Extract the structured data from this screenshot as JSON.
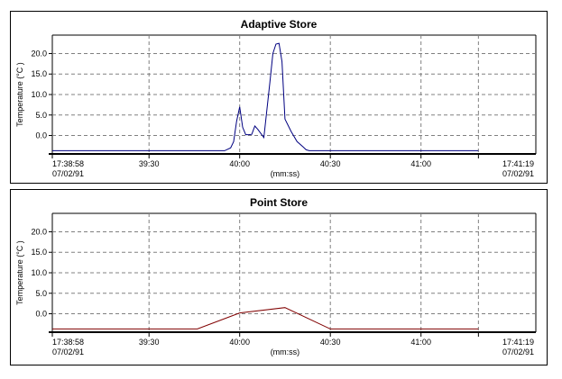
{
  "chart_data": [
    {
      "type": "line",
      "title": "Adaptive Store",
      "ylabel": "Temperature (°C )",
      "xlabel": "(mm:ss)",
      "ylim": [
        -4.5,
        24.5
      ],
      "xlim": [
        0,
        160
      ],
      "grid": true,
      "y_ticks": [
        {
          "value": 20,
          "label": "20.0"
        },
        {
          "value": 15,
          "label": "15.0"
        },
        {
          "value": 10,
          "label": "10.0"
        },
        {
          "value": 5,
          "label": "5.0"
        },
        {
          "value": 0,
          "label": "0.0"
        }
      ],
      "x_ticks": [
        {
          "value": 0,
          "label": "17:38:58",
          "sublabel": "07/02/91",
          "align": "start"
        },
        {
          "value": 32,
          "label": "39:30",
          "sublabel": "",
          "align": "middle"
        },
        {
          "value": 62,
          "label": "40:00",
          "sublabel": "",
          "align": "middle"
        },
        {
          "value": 92,
          "label": "40:30",
          "sublabel": "",
          "align": "middle"
        },
        {
          "value": 122,
          "label": "41:00",
          "sublabel": "",
          "align": "middle"
        },
        {
          "value": 141,
          "label": "17:41:19",
          "sublabel": "07/02/91",
          "align": "end"
        }
      ],
      "series": [
        {
          "color": "#000080",
          "x": [
            0,
            57,
            59,
            60,
            61,
            62,
            63,
            64,
            65,
            66,
            67,
            68,
            69,
            70,
            72,
            73,
            74,
            75,
            76,
            77,
            78,
            79,
            81,
            83,
            84,
            85,
            86,
            87,
            141
          ],
          "y": [
            -3.7,
            -3.7,
            -3,
            -1.5,
            3.5,
            7,
            2,
            0.2,
            0.2,
            0.3,
            2.3,
            1.5,
            0.5,
            -0.5,
            13,
            20,
            22.3,
            22.5,
            18,
            4,
            2.5,
            1,
            -1.5,
            -2.8,
            -3.5,
            -3.7,
            -3.7,
            -3.7,
            -3.7
          ]
        }
      ]
    },
    {
      "type": "line",
      "title": "Point Store",
      "ylabel": "Temperature (°C )",
      "xlabel": "(mm:ss)",
      "ylim": [
        -4.5,
        24.5
      ],
      "xlim": [
        0,
        160
      ],
      "grid": true,
      "y_ticks": [
        {
          "value": 20,
          "label": "20.0"
        },
        {
          "value": 15,
          "label": "15.0"
        },
        {
          "value": 10,
          "label": "10.0"
        },
        {
          "value": 5,
          "label": "5.0"
        },
        {
          "value": 0,
          "label": "0.0"
        }
      ],
      "x_ticks": [
        {
          "value": 0,
          "label": "17:38:58",
          "sublabel": "07/02/91",
          "align": "start"
        },
        {
          "value": 32,
          "label": "39:30",
          "sublabel": "",
          "align": "middle"
        },
        {
          "value": 62,
          "label": "40:00",
          "sublabel": "",
          "align": "middle"
        },
        {
          "value": 92,
          "label": "40:30",
          "sublabel": "",
          "align": "middle"
        },
        {
          "value": 122,
          "label": "41:00",
          "sublabel": "",
          "align": "middle"
        },
        {
          "value": 141,
          "label": "17:41:19",
          "sublabel": "07/02/91",
          "align": "end"
        }
      ],
      "series": [
        {
          "color": "#800000",
          "x": [
            0,
            48,
            62,
            77,
            92,
            141
          ],
          "y": [
            -3.7,
            -3.7,
            0.2,
            1.5,
            -3.7,
            -3.7
          ]
        }
      ]
    }
  ]
}
